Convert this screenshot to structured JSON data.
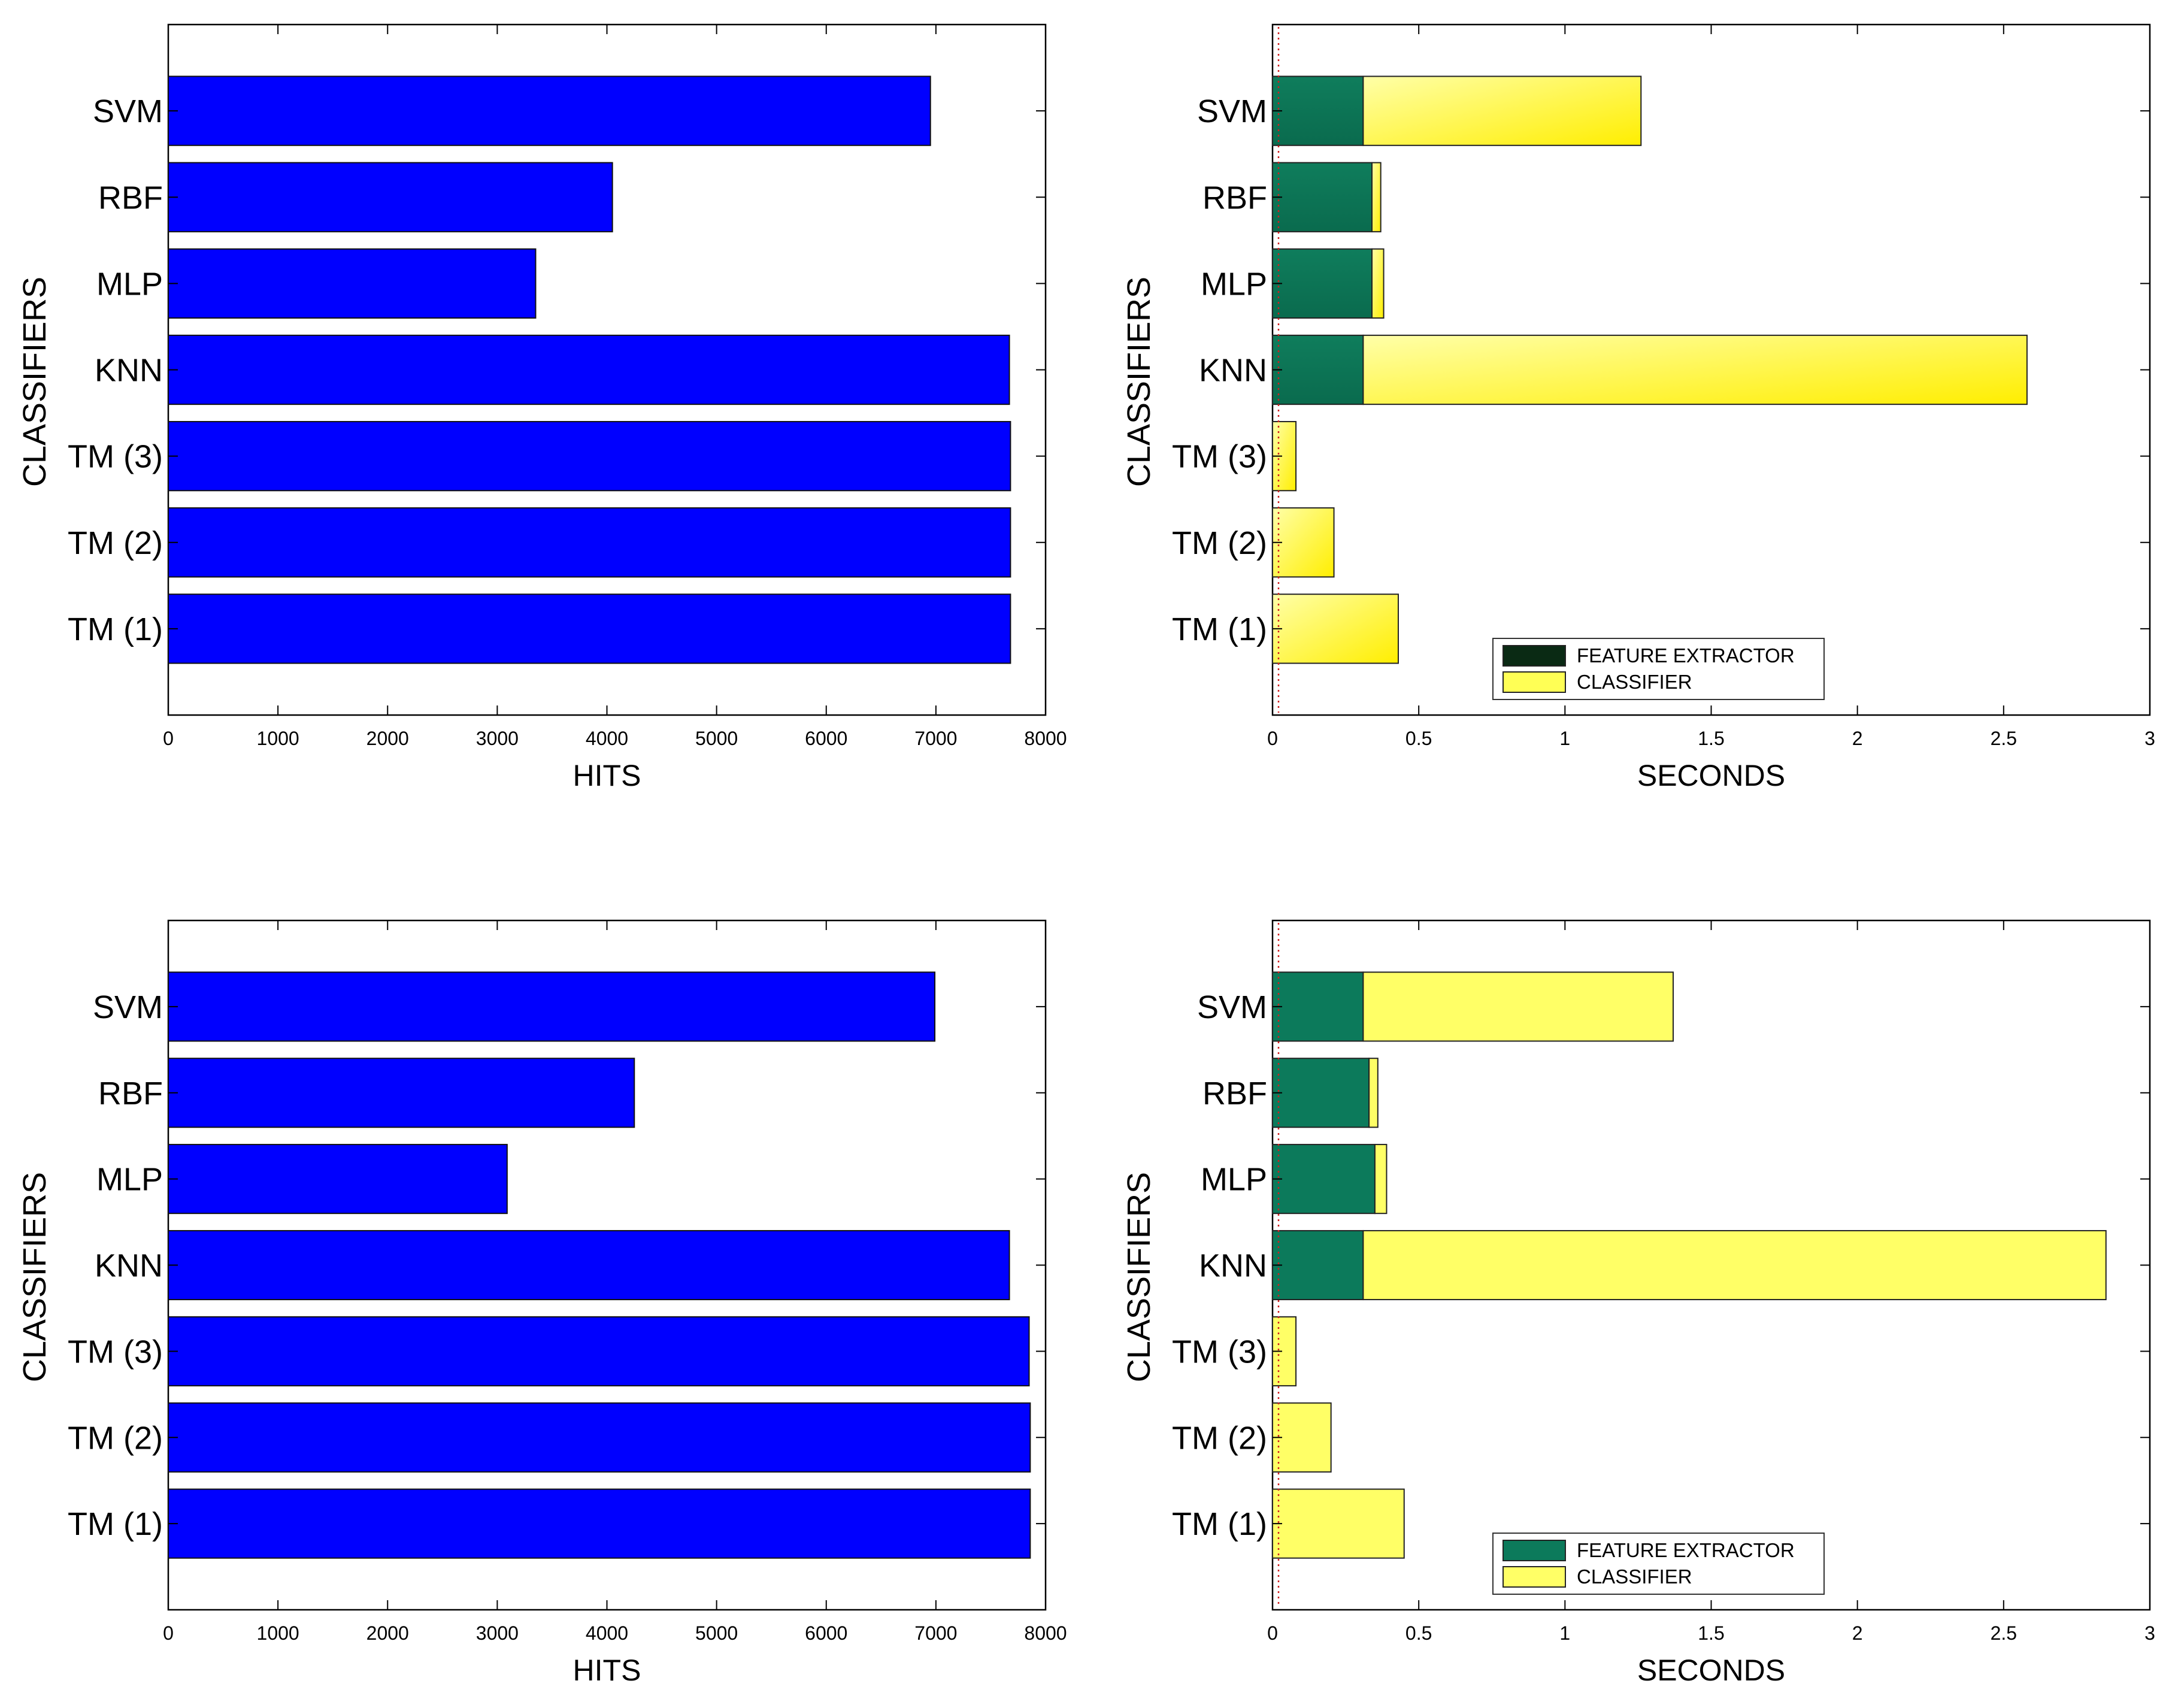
{
  "colors": {
    "hits_bar": "#0000ff",
    "feature_extractor_top": "#0c7a5b",
    "classifier_top": "#ffff55",
    "feature_extractor_bottom": "#0c7a5b",
    "classifier_bottom": "#ffff66",
    "legend_swatch_fe_top": "#0a2a14",
    "frame": "#000000"
  },
  "chart_data": [
    {
      "type": "bar",
      "orientation": "horizontal",
      "categories": [
        "SVM",
        "RBF",
        "MLP",
        "KNN",
        "TM (3)",
        "TM (2)",
        "TM (1)"
      ],
      "values": [
        6950,
        4050,
        3350,
        7670,
        7680,
        7680,
        7680
      ],
      "xlabel": "HITS",
      "ylabel": "CLASSIFIERS",
      "xlim": [
        0,
        8000
      ],
      "xticks": [
        "0",
        "1000",
        "2000",
        "3000",
        "4000",
        "5000",
        "6000",
        "7000",
        "8000"
      ],
      "grid": false
    },
    {
      "type": "bar",
      "orientation": "horizontal",
      "stacked": true,
      "categories": [
        "SVM",
        "RBF",
        "MLP",
        "KNN",
        "TM (3)",
        "TM (2)",
        "TM (1)"
      ],
      "series": [
        {
          "name": "FEATURE EXTRACTOR",
          "values": [
            0.31,
            0.34,
            0.34,
            0.31,
            0.0,
            0.0,
            0.0
          ]
        },
        {
          "name": "CLASSIFIER",
          "values": [
            0.95,
            0.03,
            0.04,
            2.27,
            0.08,
            0.21,
            0.43
          ]
        }
      ],
      "xlabel": "SECONDS",
      "ylabel": "CLASSIFIERS",
      "xlim": [
        0,
        3
      ],
      "xticks": [
        "0",
        "0.5",
        "1",
        "1.5",
        "2",
        "2.5",
        "3"
      ],
      "legend": [
        "FEATURE EXTRACTOR",
        "CLASSIFIER"
      ],
      "legend_position": "bottom-center",
      "grid": false
    },
    {
      "type": "bar",
      "orientation": "horizontal",
      "categories": [
        "SVM",
        "RBF",
        "MLP",
        "KNN",
        "TM (3)",
        "TM (2)",
        "TM (1)"
      ],
      "values": [
        6990,
        4250,
        3090,
        7670,
        7850,
        7860,
        7860
      ],
      "xlabel": "HITS",
      "ylabel": "CLASSIFIERS",
      "xlim": [
        0,
        8000
      ],
      "xticks": [
        "0",
        "1000",
        "2000",
        "3000",
        "4000",
        "5000",
        "6000",
        "7000",
        "8000"
      ],
      "grid": false
    },
    {
      "type": "bar",
      "orientation": "horizontal",
      "stacked": true,
      "categories": [
        "SVM",
        "RBF",
        "MLP",
        "KNN",
        "TM (3)",
        "TM (2)",
        "TM (1)"
      ],
      "series": [
        {
          "name": "FEATURE EXTRACTOR",
          "values": [
            0.31,
            0.33,
            0.35,
            0.31,
            0.0,
            0.0,
            0.0
          ]
        },
        {
          "name": "CLASSIFIER",
          "values": [
            1.06,
            0.03,
            0.04,
            2.54,
            0.08,
            0.2,
            0.45
          ]
        }
      ],
      "xlabel": "SECONDS",
      "ylabel": "CLASSIFIERS",
      "xlim": [
        0,
        3
      ],
      "xticks": [
        "0",
        "0.5",
        "1",
        "1.5",
        "2",
        "2.5",
        "3"
      ],
      "legend": [
        "FEATURE EXTRACTOR",
        "CLASSIFIER"
      ],
      "legend_position": "bottom-center",
      "grid": false
    }
  ]
}
